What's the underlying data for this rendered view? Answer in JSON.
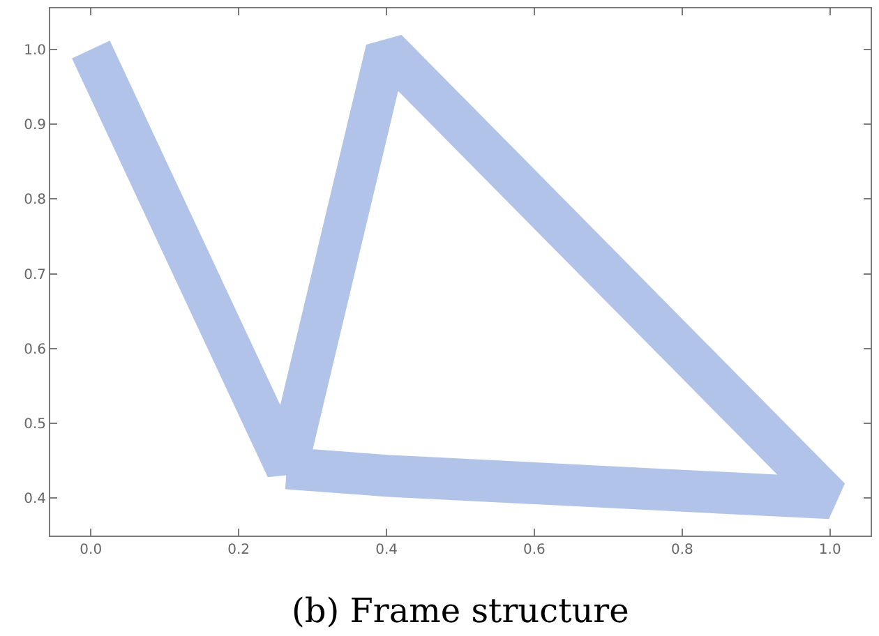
{
  "chart_data": {
    "type": "line",
    "annotations": [
      "(b) Frame structure"
    ],
    "x": [
      0,
      0.265,
      0.4,
      1,
      0.4,
      0.265
    ],
    "values": [
      1,
      0.44,
      1,
      0.4,
      0.43,
      0.44
    ],
    "color": "#aec0e8",
    "marker": "none",
    "line_style": "solid",
    "grid": false,
    "xlim": [
      -0.055,
      1.055
    ],
    "xticks": [
      {
        "value": 0,
        "label": "0.0"
      },
      0.2,
      0.4,
      0.6,
      0.8,
      {
        "value": 1,
        "label": "1.0"
      }
    ],
    "ylim": [
      0.35,
      1.055
    ],
    "yticks": [
      0.4,
      0.5,
      0.6,
      0.7,
      0.8,
      0.9,
      {
        "value": 1,
        "label": "1.0"
      }
    ]
  }
}
